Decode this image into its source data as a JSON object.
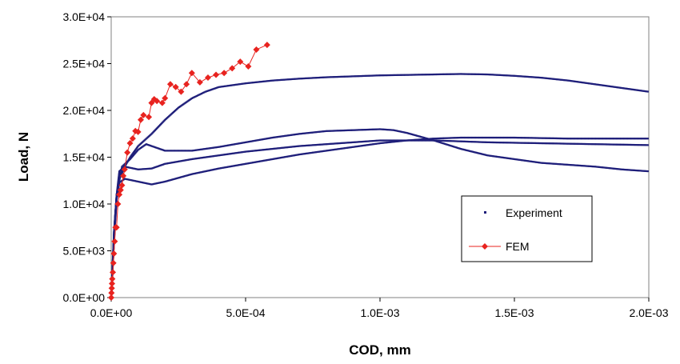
{
  "chart_data": {
    "type": "scatter",
    "xlabel": "COD, mm",
    "ylabel": "Load, N",
    "xlim": [
      0,
      0.002
    ],
    "ylim": [
      0,
      30000
    ],
    "x_ticks": [
      "0.0E+00",
      "5.0E-04",
      "1.0E-03",
      "1.5E-03",
      "2.0E-03"
    ],
    "y_ticks": [
      "0.0E+00",
      "5.0E+03",
      "1.0E+04",
      "1.5E+04",
      "2.0E+04",
      "2.5E+04",
      "3.0E+04"
    ],
    "grid": false,
    "legend_position": "lower-right",
    "series": [
      {
        "name": "Experiment",
        "color": "#1f1f7a",
        "marker": "small-dot",
        "curves": [
          [
            [
              0,
              0
            ],
            [
              5e-06,
              3000
            ],
            [
              1e-05,
              6000
            ],
            [
              1.5e-05,
              9000
            ],
            [
              2e-05,
              11000
            ],
            [
              3e-05,
              12700
            ],
            [
              4e-05,
              13300
            ],
            [
              5e-05,
              14000
            ],
            [
              7e-05,
              15000
            ],
            [
              0.0001,
              16200
            ],
            [
              0.00015,
              17500
            ],
            [
              0.0002,
              19000
            ],
            [
              0.00025,
              20300
            ],
            [
              0.0003,
              21300
            ],
            [
              0.00035,
              22000
            ],
            [
              0.0004,
              22500
            ],
            [
              0.0005,
              22900
            ],
            [
              0.0006,
              23200
            ],
            [
              0.0007,
              23400
            ],
            [
              0.0008,
              23550
            ],
            [
              0.0009,
              23650
            ],
            [
              0.001,
              23750
            ],
            [
              0.0011,
              23800
            ],
            [
              0.0012,
              23850
            ],
            [
              0.0013,
              23900
            ],
            [
              0.0014,
              23850
            ],
            [
              0.0015,
              23700
            ],
            [
              0.0016,
              23500
            ],
            [
              0.0017,
              23200
            ],
            [
              0.0018,
              22800
            ],
            [
              0.0019,
              22400
            ],
            [
              0.002,
              22000
            ]
          ],
          [
            [
              0,
              0
            ],
            [
              1e-05,
              7000
            ],
            [
              2e-05,
              11000
            ],
            [
              4e-05,
              14000
            ],
            [
              7e-05,
              14800
            ],
            [
              0.0001,
              15800
            ],
            [
              0.00013,
              16400
            ],
            [
              0.00016,
              16100
            ],
            [
              0.0002,
              15700
            ],
            [
              0.0003,
              15700
            ],
            [
              0.0004,
              16100
            ],
            [
              0.0005,
              16600
            ],
            [
              0.0006,
              17100
            ],
            [
              0.0007,
              17500
            ],
            [
              0.0008,
              17800
            ],
            [
              0.0009,
              17900
            ],
            [
              0.001,
              18000
            ],
            [
              0.00105,
              17900
            ],
            [
              0.0011,
              17600
            ],
            [
              0.0012,
              16800
            ],
            [
              0.0013,
              15900
            ],
            [
              0.0014,
              15200
            ],
            [
              0.0015,
              14800
            ],
            [
              0.0016,
              14400
            ],
            [
              0.0017,
              14200
            ],
            [
              0.0018,
              14000
            ],
            [
              0.0019,
              13700
            ],
            [
              0.002,
              13500
            ]
          ],
          [
            [
              0,
              0
            ],
            [
              1e-05,
              7000
            ],
            [
              2e-05,
              11000
            ],
            [
              3e-05,
              13500
            ],
            [
              5e-05,
              14000
            ],
            [
              0.0001,
              13700
            ],
            [
              0.00015,
              13800
            ],
            [
              0.0002,
              14300
            ],
            [
              0.0003,
              14800
            ],
            [
              0.0004,
              15200
            ],
            [
              0.0005,
              15600
            ],
            [
              0.0006,
              15900
            ],
            [
              0.0007,
              16200
            ],
            [
              0.0008,
              16400
            ],
            [
              0.0009,
              16600
            ],
            [
              0.001,
              16800
            ],
            [
              0.0011,
              16800
            ],
            [
              0.0012,
              16800
            ],
            [
              0.0013,
              16700
            ],
            [
              0.0014,
              16600
            ],
            [
              0.0015,
              16550
            ],
            [
              0.0016,
              16500
            ],
            [
              0.0017,
              16450
            ],
            [
              0.0018,
              16400
            ],
            [
              0.0019,
              16350
            ],
            [
              0.002,
              16300
            ]
          ],
          [
            [
              0,
              0
            ],
            [
              1e-05,
              6000
            ],
            [
              2e-05,
              10500
            ],
            [
              3e-05,
              12300
            ],
            [
              5e-05,
              12700
            ],
            [
              0.0001,
              12400
            ],
            [
              0.00015,
              12100
            ],
            [
              0.0002,
              12400
            ],
            [
              0.0003,
              13200
            ],
            [
              0.0004,
              13800
            ],
            [
              0.0005,
              14300
            ],
            [
              0.0006,
              14800
            ],
            [
              0.0007,
              15300
            ],
            [
              0.0008,
              15700
            ],
            [
              0.0009,
              16100
            ],
            [
              0.001,
              16500
            ],
            [
              0.0011,
              16800
            ],
            [
              0.0012,
              17000
            ],
            [
              0.0013,
              17100
            ],
            [
              0.0014,
              17100
            ],
            [
              0.0015,
              17100
            ],
            [
              0.0016,
              17050
            ],
            [
              0.0017,
              17000
            ],
            [
              0.0018,
              17000
            ],
            [
              0.0019,
              17000
            ],
            [
              0.002,
              17000
            ]
          ]
        ]
      },
      {
        "name": "FEM",
        "color": "#e8231f",
        "marker": "diamond",
        "x": [
          0,
          1e-06,
          2e-06,
          3e-06,
          4e-06,
          6e-06,
          8e-06,
          1e-05,
          1.3e-05,
          1.6e-05,
          2e-05,
          2.5e-05,
          3e-05,
          3.5e-05,
          4e-05,
          4.5e-05,
          5e-05,
          6e-05,
          7e-05,
          8e-05,
          9e-05,
          0.0001,
          0.00011,
          0.00012,
          0.00014,
          0.00015,
          0.00016,
          0.00017,
          0.00019,
          0.0002,
          0.00022,
          0.00024,
          0.00026,
          0.00028,
          0.0003,
          0.00033,
          0.00036,
          0.00039,
          0.00042,
          0.00045,
          0.00048,
          0.00051,
          0.00054,
          0.00058
        ],
        "y": [
          0,
          500,
          1000,
          1500,
          2000,
          2700,
          3700,
          4700,
          6000,
          7500,
          7500,
          10000,
          11000,
          11500,
          12000,
          13000,
          13700,
          15500,
          16500,
          17000,
          17800,
          17700,
          19000,
          19500,
          19300,
          20800,
          21200,
          21000,
          20800,
          21300,
          22800,
          22500,
          22000,
          22800,
          24000,
          23000,
          23500,
          23800,
          24000,
          24500,
          25200,
          24700,
          26500,
          27000
        ]
      }
    ]
  }
}
